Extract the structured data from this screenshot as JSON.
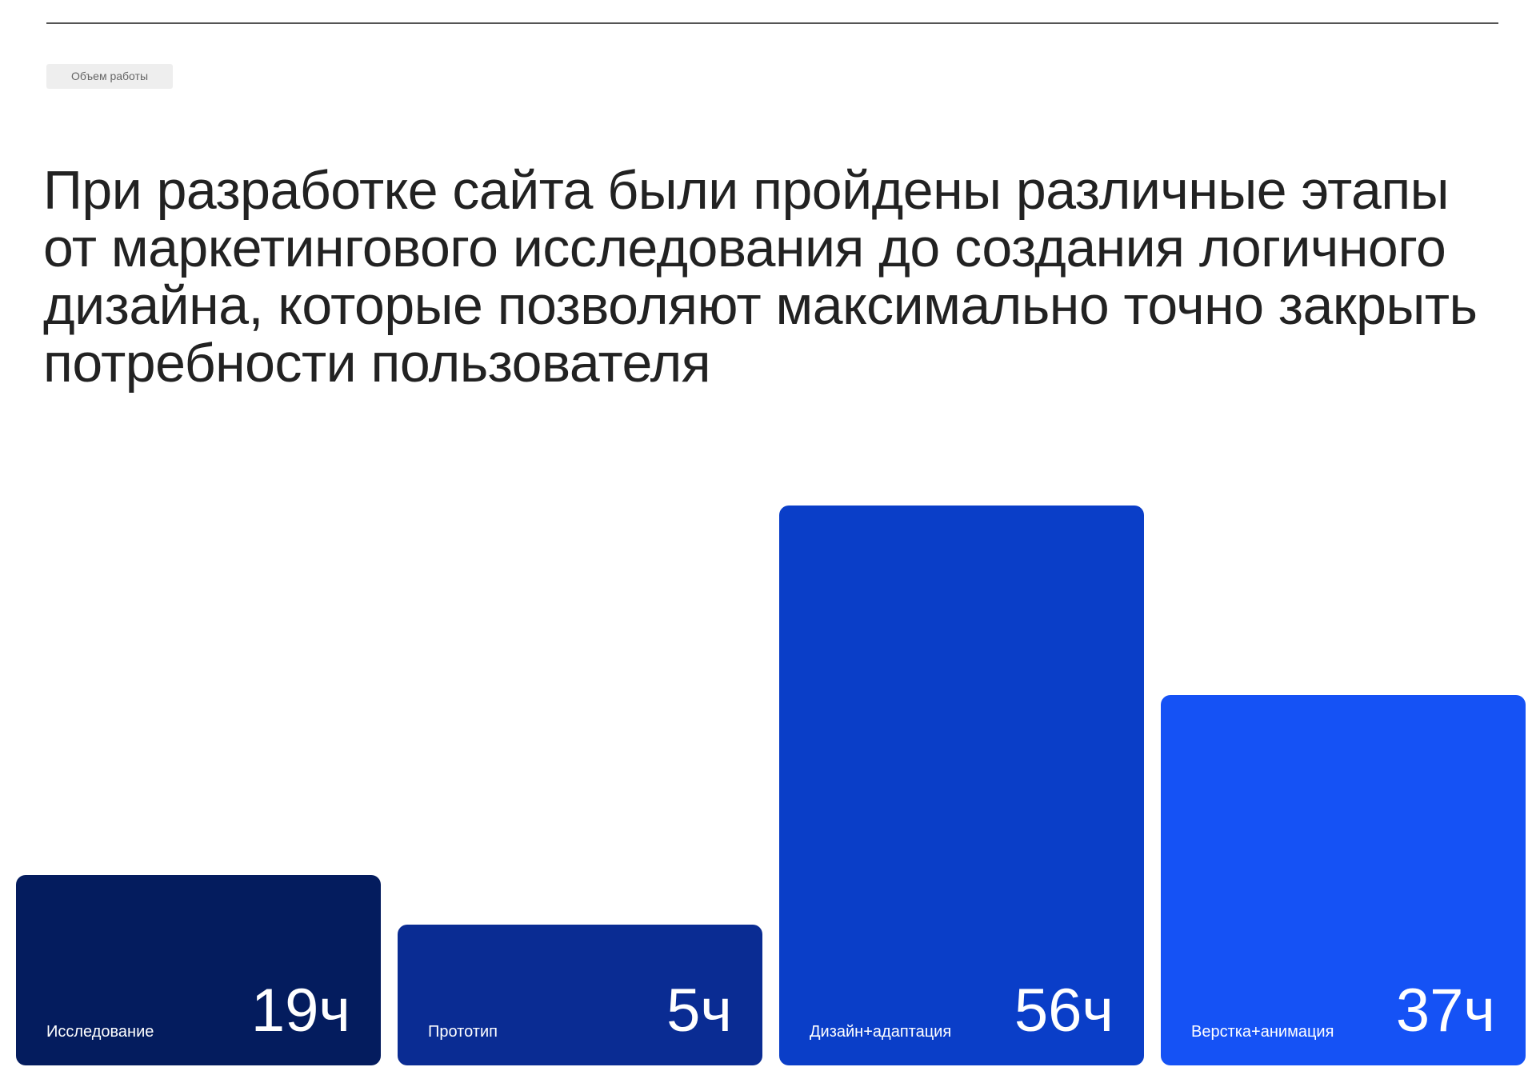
{
  "section_tag": "Объем работы",
  "headline": "При разработке сайта были пройдены различные этапы от маркетингового исследования до создания логичного дизайна, которые позволяют максимально точно закрыть потребности пользователя",
  "chart_data": {
    "type": "bar",
    "categories": [
      "Исследование",
      "Прототип",
      "Дизайн+адаптация",
      "Верстка+анимация"
    ],
    "values": [
      19,
      5,
      56,
      37
    ],
    "value_labels": [
      "19ч",
      "5ч",
      "56ч",
      "37ч"
    ],
    "colors": [
      "#041c5e",
      "#0a2c93",
      "#0a3ec8",
      "#1552f5"
    ],
    "title": "",
    "xlabel": "",
    "ylabel": "",
    "ylim": [
      0,
      56
    ],
    "grid": false,
    "legend": "none"
  }
}
